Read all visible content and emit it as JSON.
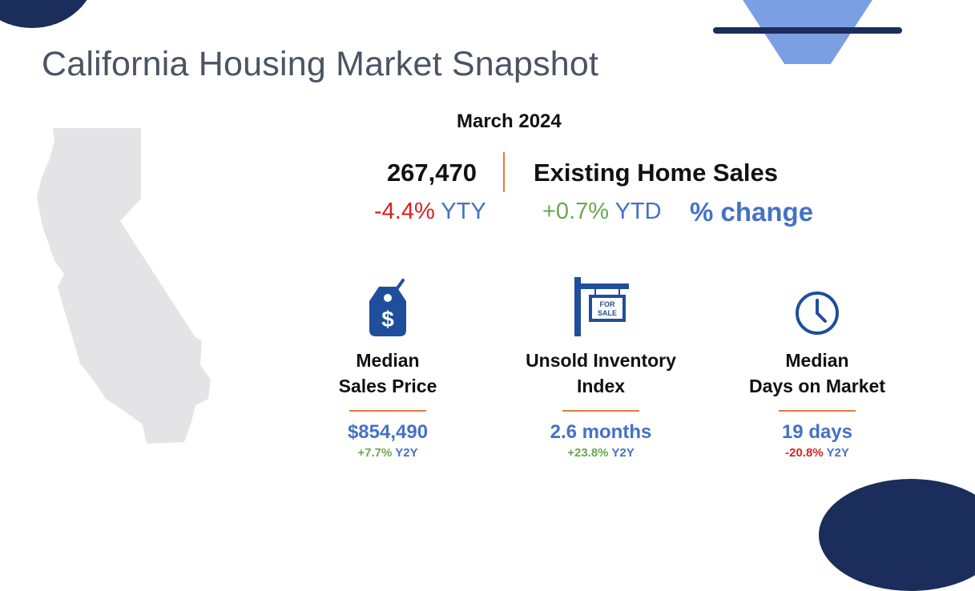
{
  "title": "California Housing Market Snapshot",
  "period": "March 2024",
  "existing_sales": {
    "count": "267,470",
    "label": "Existing Home Sales",
    "yty_change": "-4.4%",
    "yty_suffix": " YTY",
    "ytd_change": "+0.7%",
    "ytd_suffix": " YTD",
    "change_caption": "% change"
  },
  "stats": [
    {
      "icon": "price-tag-dollar-icon",
      "label_line1": "Median",
      "label_line2": "Sales Price",
      "value": "$854,490",
      "change": "+7.7%",
      "change_suffix": " Y2Y",
      "change_color": "#6aa84f"
    },
    {
      "icon": "for-sale-sign-icon",
      "icon_text_line1": "FOR",
      "icon_text_line2": "SALE",
      "label_line1": "Unsold Inventory",
      "label_line2": "Index",
      "value": "2.6 months",
      "change": "+23.8%",
      "change_suffix": " Y2Y",
      "change_color": "#6aa84f"
    },
    {
      "icon": "clock-icon",
      "label_line1": "Median",
      "label_line2": "Days on Market",
      "value": "19 days",
      "change": "-20.8%",
      "change_suffix": " Y2Y",
      "change_color": "#d92020"
    }
  ],
  "colors": {
    "accent_blue": "#4472c4",
    "navy": "#1b2d5a",
    "light_blue": "#7b9fe3",
    "orange_rule": "#e07b39",
    "positive": "#6aa84f",
    "negative": "#d92020",
    "map_gray": "#e4e4e6"
  }
}
